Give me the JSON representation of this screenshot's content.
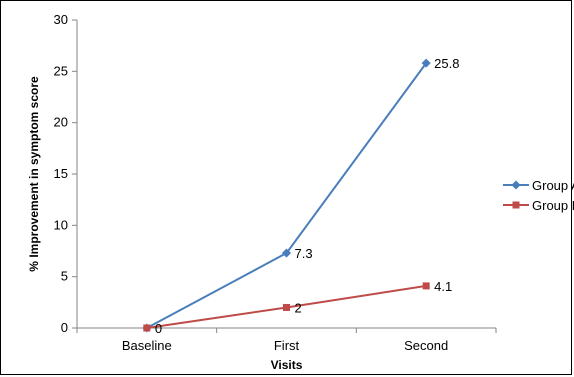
{
  "chart_data": {
    "type": "line",
    "categories": [
      "Baseline",
      "First",
      "Second"
    ],
    "series": [
      {
        "name": "Group A",
        "values": [
          0,
          7.3,
          25.8
        ],
        "labels": [
          "",
          "7.3",
          "25.8"
        ],
        "color": "#4A7EBB"
      },
      {
        "name": "Group B",
        "values": [
          0,
          2,
          4.1
        ],
        "labels": [
          "0",
          "2",
          "4.1"
        ],
        "color": "#BE4B48"
      }
    ],
    "xlabel": "Visits",
    "ylabel": "% Improvement in symptom score",
    "ylim": [
      0,
      30
    ],
    "yticks": [
      "0",
      "5",
      "10",
      "15",
      "20",
      "25",
      "30"
    ],
    "grid": false,
    "legend": "right"
  }
}
